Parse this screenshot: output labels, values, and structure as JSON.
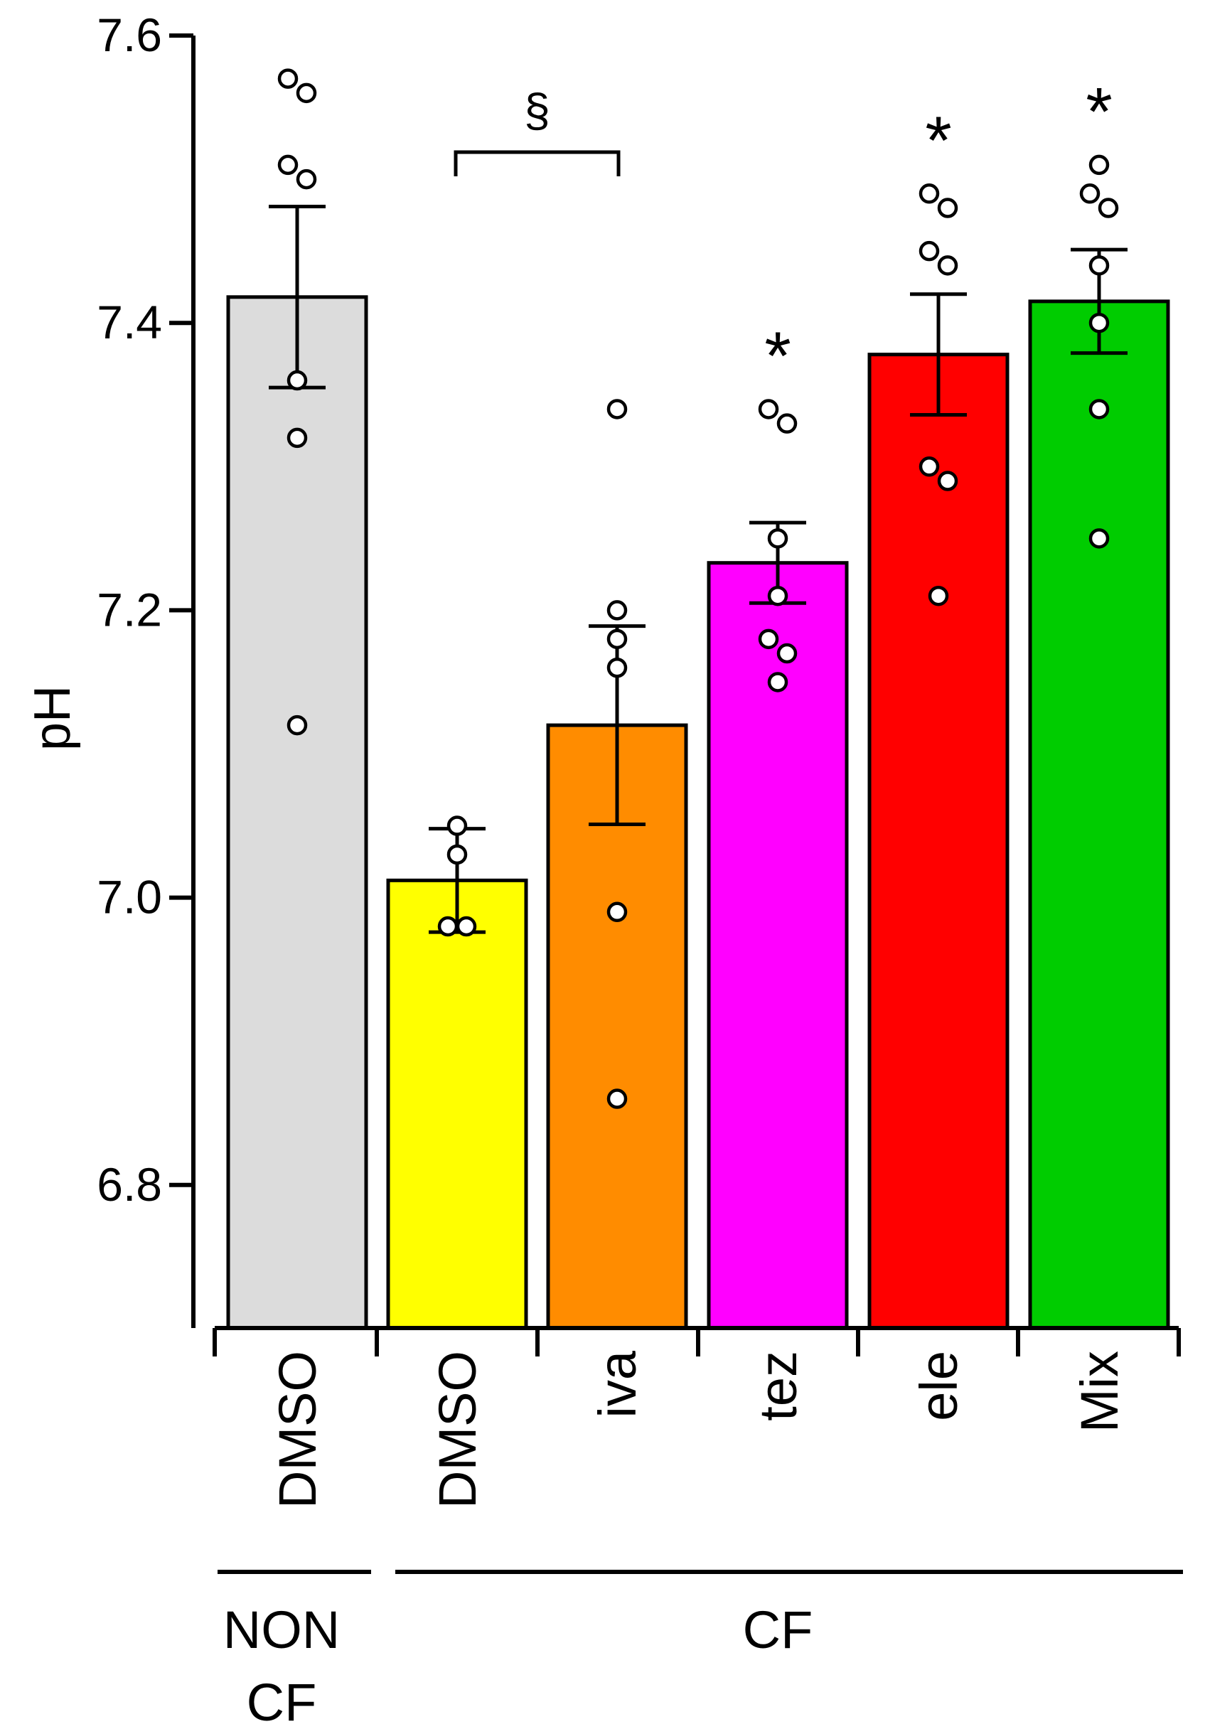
{
  "chart_data": {
    "type": "bar",
    "ylabel": "pH",
    "ylim": [
      6.7,
      7.6
    ],
    "yticks": [
      "6.8",
      "7.0",
      "7.2",
      "7.4",
      "7.6"
    ],
    "categories": [
      "DMSO",
      "DMSO",
      "iva",
      "tez",
      "ele",
      "Mix"
    ],
    "groups": [
      {
        "label": "NON\nCF",
        "categories": [
          0
        ]
      },
      {
        "label": "CF",
        "categories": [
          1,
          2,
          3,
          4,
          5
        ]
      }
    ],
    "values": [
      7.418,
      7.012,
      7.12,
      7.233,
      7.378,
      7.415
    ],
    "sem": [
      0.063,
      0.036,
      0.069,
      0.028,
      0.042,
      0.036
    ],
    "colors": [
      "#dcdcdc",
      "#ffff00",
      "#ff8c00",
      "#ff00ff",
      "#ff0000",
      "#00cc00"
    ],
    "points": [
      [
        7.56,
        7.57,
        7.5,
        7.51,
        7.36,
        7.32,
        7.12
      ],
      [
        7.05,
        7.03,
        6.98,
        6.98
      ],
      [
        7.34,
        7.2,
        7.18,
        7.16,
        6.99,
        6.86
      ],
      [
        7.33,
        7.34,
        7.25,
        7.21,
        7.18,
        7.17,
        7.15
      ],
      [
        7.48,
        7.49,
        7.44,
        7.45,
        7.29,
        7.3,
        7.21
      ],
      [
        7.51,
        7.48,
        7.49,
        7.44,
        7.4,
        7.34,
        7.25
      ]
    ],
    "significance": [
      {
        "category": 3,
        "mark": "*"
      },
      {
        "category": 4,
        "mark": "*"
      },
      {
        "category": 5,
        "mark": "*"
      }
    ],
    "bracket": {
      "from": 1,
      "to": 2,
      "mark": "§"
    },
    "grid": false,
    "legend": "none"
  }
}
